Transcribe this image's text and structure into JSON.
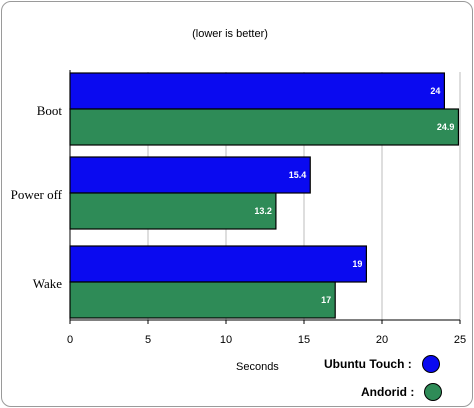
{
  "chart_data": {
    "type": "bar",
    "orientation": "horizontal",
    "subtitle": "(lower is better)",
    "xlabel": "Seconds",
    "ylabel": "",
    "xlim": [
      0,
      25
    ],
    "x_ticks": [
      "0",
      "5",
      "10",
      "15",
      "20",
      "25"
    ],
    "categories": [
      "Boot",
      "Power off",
      "Wake"
    ],
    "series": [
      {
        "name": "Ubuntu Touch :",
        "color": "#0a0af0",
        "values": [
          24,
          15.4,
          19
        ],
        "labels": [
          "24",
          "15.4",
          "19"
        ]
      },
      {
        "name": "Andorid :",
        "color": "#2e8b57",
        "values": [
          24.9,
          13.2,
          17
        ],
        "labels": [
          "24.9",
          "13.2",
          "17"
        ]
      }
    ],
    "grid": true,
    "legend_position": "bottom-right"
  }
}
